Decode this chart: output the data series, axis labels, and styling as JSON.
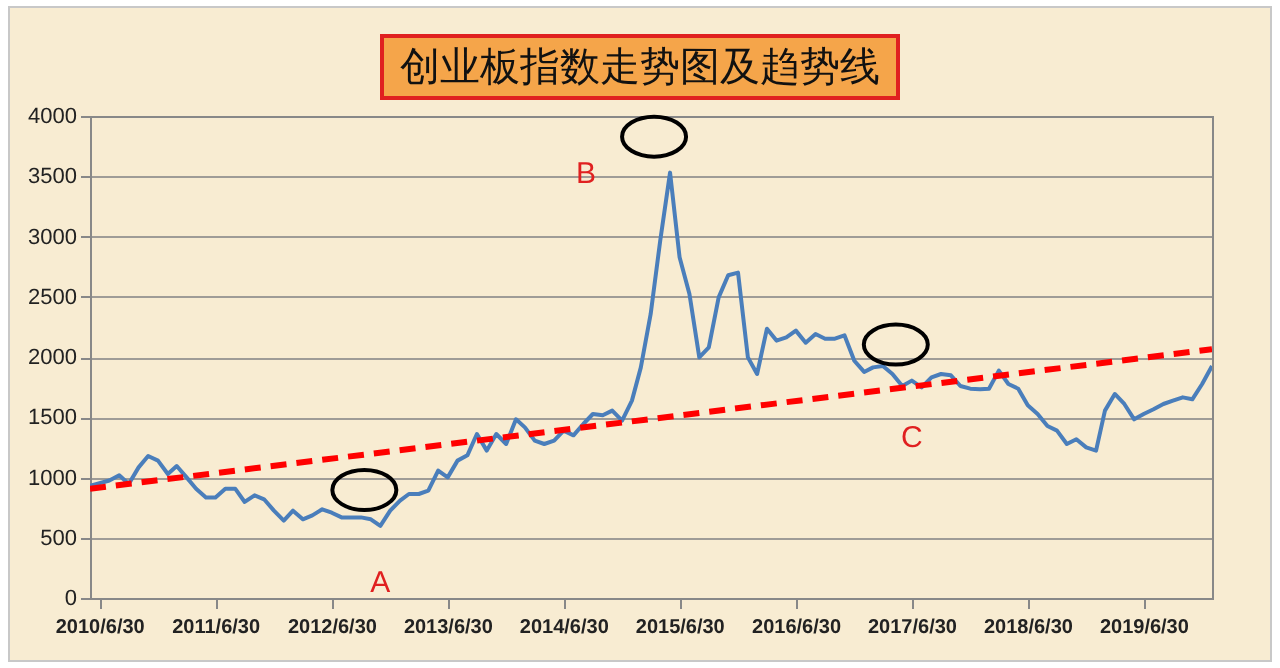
{
  "chart_data": {
    "type": "line",
    "title": "创业板指数走势图及趋势线",
    "x": [
      "2010-06",
      "2010-08",
      "2010-09",
      "2010-10",
      "2010-11",
      "2010-12",
      "2011-01",
      "2011-02",
      "2011-03",
      "2011-04",
      "2011-05",
      "2011-06",
      "2011-07",
      "2011-08",
      "2011-09",
      "2011-10",
      "2011-11",
      "2011-12",
      "2012-01",
      "2012-02",
      "2012-03",
      "2012-04",
      "2012-05",
      "2012-06",
      "2012-07",
      "2012-08",
      "2012-09",
      "2012-10",
      "2012-11",
      "2012-12",
      "2013-01",
      "2013-02",
      "2013-03",
      "2013-04",
      "2013-05",
      "2013-06",
      "2013-07",
      "2013-08",
      "2013-09",
      "2013-10",
      "2013-11",
      "2013-12",
      "2014-01",
      "2014-02",
      "2014-03",
      "2014-04",
      "2014-05",
      "2014-06",
      "2014-07",
      "2014-08",
      "2014-09",
      "2014-10",
      "2014-11",
      "2014-12",
      "2015-01",
      "2015-02",
      "2015-03",
      "2015-04",
      "2015-05",
      "2015-06",
      "2015-07",
      "2015-08",
      "2015-09",
      "2015-10",
      "2015-11",
      "2015-12",
      "2016-01",
      "2016-02",
      "2016-03",
      "2016-04",
      "2016-05",
      "2016-06",
      "2016-07",
      "2016-08",
      "2016-09",
      "2016-10",
      "2016-11",
      "2016-12",
      "2017-01",
      "2017-02",
      "2017-03",
      "2017-04",
      "2017-05",
      "2017-06",
      "2017-07",
      "2017-08",
      "2017-09",
      "2017-10",
      "2017-11",
      "2017-12",
      "2018-01",
      "2018-02",
      "2018-03",
      "2018-04",
      "2018-05",
      "2018-06",
      "2018-07",
      "2018-08",
      "2018-09",
      "2018-10",
      "2018-11",
      "2018-12",
      "2019-01",
      "2019-02",
      "2019-03",
      "2019-04",
      "2019-05",
      "2019-06",
      "2019-07",
      "2019-08",
      "2019-09",
      "2019-10",
      "2019-11",
      "2019-12",
      "2020-01",
      "2020-02"
    ],
    "series": [
      {
        "color": "#4a7ebb",
        "values": [
          930,
          975,
          1018,
          946,
          1084,
          1178,
          1140,
          1029,
          1095,
          1001,
          907,
          835,
          835,
          907,
          907,
          797,
          852,
          819,
          725,
          642,
          725,
          653,
          686,
          736,
          708,
          669,
          669,
          669,
          653,
          598,
          725,
          808,
          863,
          863,
          891,
          1057,
          1001,
          1140,
          1184,
          1361,
          1223,
          1361,
          1278,
          1483,
          1416,
          1306,
          1278,
          1306,
          1389,
          1350,
          1444,
          1527,
          1516,
          1555,
          1472,
          1638,
          1914,
          2357,
          2965,
          3530,
          2827,
          2523,
          1997,
          2080,
          2495,
          2678,
          2700,
          1997,
          1859,
          2235,
          2136,
          2163,
          2219,
          2119,
          2191,
          2152,
          2152,
          2180,
          1969,
          1876,
          1914,
          1925,
          1859,
          1759,
          1804,
          1748,
          1831,
          1859,
          1848,
          1759,
          1737,
          1732,
          1737,
          1887,
          1776,
          1737,
          1599,
          1527,
          1427,
          1389,
          1278,
          1317,
          1250,
          1223,
          1555,
          1693,
          1610,
          1483,
          1527,
          1566,
          1610,
          1638,
          1665,
          1649,
          1776,
          1925
        ]
      },
      {
        "type": "line",
        "color": "#ff0000",
        "line_style": "dashed",
        "x": [
          "2010-06",
          "2020-02"
        ],
        "values": [
          907,
          2064
        ]
      }
    ],
    "xlim": [
      "2010-06",
      "2020-02"
    ],
    "xticks": [
      {
        "value": "2010-06-30",
        "label": "2010/6/30"
      },
      {
        "value": "2011-06-30",
        "label": "2011/6/30"
      },
      {
        "value": "2012-06-30",
        "label": "2012/6/30"
      },
      {
        "value": "2013-06-30",
        "label": "2013/6/30"
      },
      {
        "value": "2014-06-30",
        "label": "2014/6/30"
      },
      {
        "value": "2015-06-30",
        "label": "2015/6/30"
      },
      {
        "value": "2016-06-30",
        "label": "2016/6/30"
      },
      {
        "value": "2017-06-30",
        "label": "2017/6/30"
      },
      {
        "value": "2018-06-30",
        "label": "2018/6/30"
      },
      {
        "value": "2019-06-30",
        "label": "2019/6/30"
      }
    ],
    "ylim": [
      0,
      4000
    ],
    "yticks": [
      0,
      500,
      1000,
      1500,
      2000,
      2500,
      3000,
      3500,
      4000
    ],
    "grid": "y",
    "annotations": [
      {
        "text": "A",
        "x": "2012-12",
        "y": 598
      },
      {
        "text": "B",
        "x": "2015-06",
        "y": 3530
      },
      {
        "text": "C",
        "x": "2017-07",
        "y": 1804
      }
    ]
  }
}
